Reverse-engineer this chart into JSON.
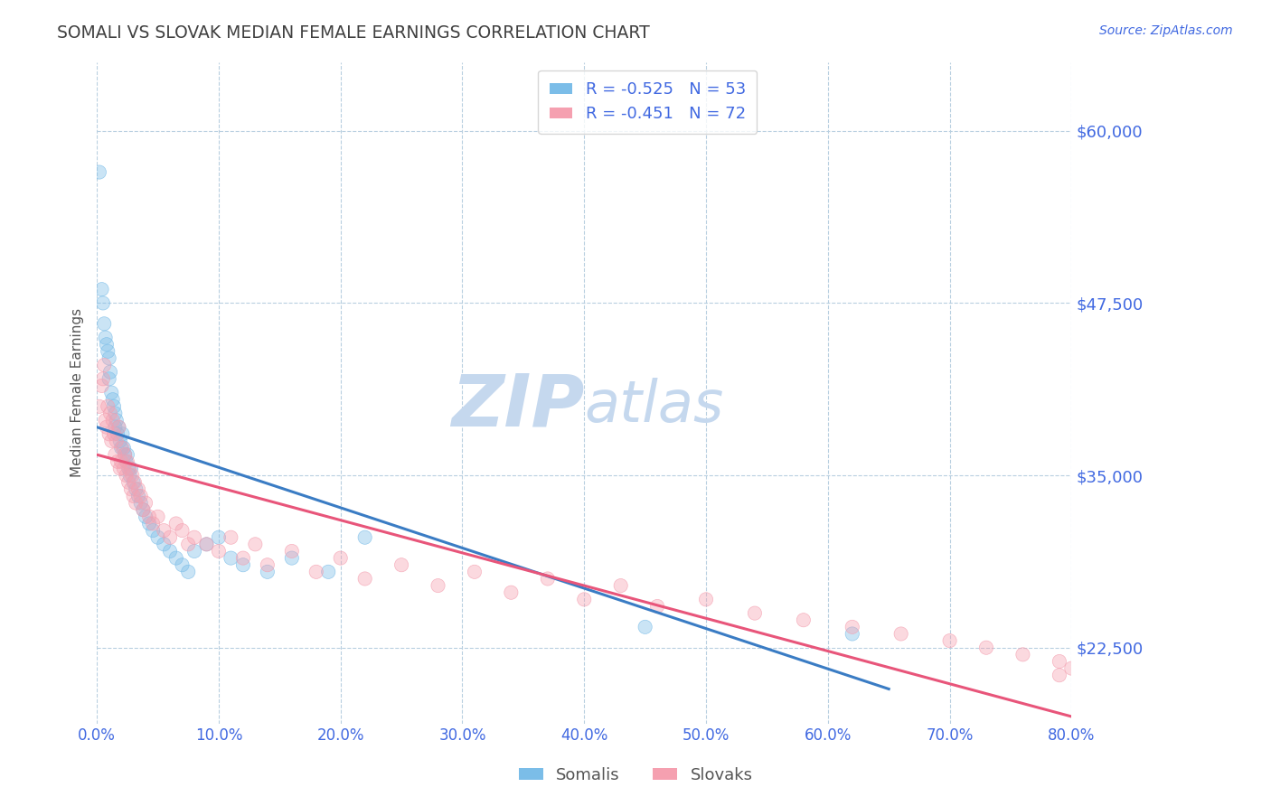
{
  "title": "SOMALI VS SLOVAK MEDIAN FEMALE EARNINGS CORRELATION CHART",
  "source": "Source: ZipAtlas.com",
  "ylabel": "Median Female Earnings",
  "xlim": [
    0.0,
    0.8
  ],
  "ylim": [
    17000,
    65000
  ],
  "yticks": [
    22500,
    35000,
    47500,
    60000
  ],
  "ytick_labels": [
    "$22,500",
    "$35,000",
    "$47,500",
    "$60,000"
  ],
  "xticks": [
    0.0,
    0.1,
    0.2,
    0.3,
    0.4,
    0.5,
    0.6,
    0.7,
    0.8
  ],
  "xtick_labels": [
    "0.0%",
    "10.0%",
    "20.0%",
    "30.0%",
    "40.0%",
    "50.0%",
    "60.0%",
    "70.0%",
    "80.0%"
  ],
  "somali_color": "#7bbde8",
  "slovak_color": "#f5a0b0",
  "somali_R": -0.525,
  "somali_N": 53,
  "slovak_R": -0.451,
  "slovak_N": 72,
  "somali_line_color": "#3a7cc4",
  "slovak_line_color": "#e8557a",
  "watermark_zip": "ZIP",
  "watermark_atlas": "atlas",
  "watermark_color": "#c5d8ee",
  "background_color": "#ffffff",
  "grid_color": "#b8cfe0",
  "title_color": "#404040",
  "axis_label_color": "#555555",
  "tick_label_color": "#4169e1",
  "somali_x": [
    0.002,
    0.004,
    0.005,
    0.006,
    0.007,
    0.008,
    0.009,
    0.01,
    0.01,
    0.011,
    0.012,
    0.013,
    0.014,
    0.015,
    0.015,
    0.016,
    0.017,
    0.018,
    0.019,
    0.02,
    0.021,
    0.022,
    0.023,
    0.024,
    0.025,
    0.026,
    0.027,
    0.028,
    0.03,
    0.032,
    0.034,
    0.036,
    0.038,
    0.04,
    0.043,
    0.046,
    0.05,
    0.055,
    0.06,
    0.065,
    0.07,
    0.075,
    0.08,
    0.09,
    0.1,
    0.11,
    0.12,
    0.14,
    0.16,
    0.19,
    0.22,
    0.45,
    0.62
  ],
  "somali_y": [
    57000,
    48500,
    47500,
    46000,
    45000,
    44500,
    44000,
    43500,
    42000,
    42500,
    41000,
    40500,
    40000,
    39500,
    38500,
    39000,
    38000,
    38500,
    37500,
    37000,
    38000,
    37000,
    36500,
    36000,
    36500,
    35500,
    35000,
    35500,
    34500,
    34000,
    33500,
    33000,
    32500,
    32000,
    31500,
    31000,
    30500,
    30000,
    29500,
    29000,
    28500,
    28000,
    29500,
    30000,
    30500,
    29000,
    28500,
    28000,
    29000,
    28000,
    30500,
    24000,
    23500
  ],
  "slovak_x": [
    0.002,
    0.004,
    0.005,
    0.006,
    0.007,
    0.008,
    0.009,
    0.01,
    0.011,
    0.012,
    0.013,
    0.014,
    0.015,
    0.016,
    0.017,
    0.018,
    0.019,
    0.02,
    0.021,
    0.022,
    0.023,
    0.024,
    0.025,
    0.026,
    0.027,
    0.028,
    0.029,
    0.03,
    0.031,
    0.032,
    0.034,
    0.036,
    0.038,
    0.04,
    0.043,
    0.046,
    0.05,
    0.055,
    0.06,
    0.065,
    0.07,
    0.075,
    0.08,
    0.09,
    0.1,
    0.11,
    0.12,
    0.13,
    0.14,
    0.16,
    0.18,
    0.2,
    0.22,
    0.25,
    0.28,
    0.31,
    0.34,
    0.37,
    0.4,
    0.43,
    0.46,
    0.5,
    0.54,
    0.58,
    0.62,
    0.66,
    0.7,
    0.73,
    0.76,
    0.79,
    0.8,
    0.79
  ],
  "slovak_y": [
    40000,
    41500,
    42000,
    43000,
    39000,
    38500,
    40000,
    38000,
    39500,
    37500,
    39000,
    38000,
    36500,
    37500,
    36000,
    38500,
    35500,
    36000,
    37000,
    35500,
    36500,
    35000,
    36000,
    34500,
    35500,
    34000,
    35000,
    33500,
    34500,
    33000,
    34000,
    33500,
    32500,
    33000,
    32000,
    31500,
    32000,
    31000,
    30500,
    31500,
    31000,
    30000,
    30500,
    30000,
    29500,
    30500,
    29000,
    30000,
    28500,
    29500,
    28000,
    29000,
    27500,
    28500,
    27000,
    28000,
    26500,
    27500,
    26000,
    27000,
    25500,
    26000,
    25000,
    24500,
    24000,
    23500,
    23000,
    22500,
    22000,
    21500,
    21000,
    20500
  ],
  "somali_line_x0": 0.0,
  "somali_line_x1": 0.65,
  "somali_line_y0": 38500,
  "somali_line_y1": 19500,
  "slovak_line_x0": 0.0,
  "slovak_line_x1": 0.8,
  "slovak_line_y0": 36500,
  "slovak_line_y1": 17500
}
